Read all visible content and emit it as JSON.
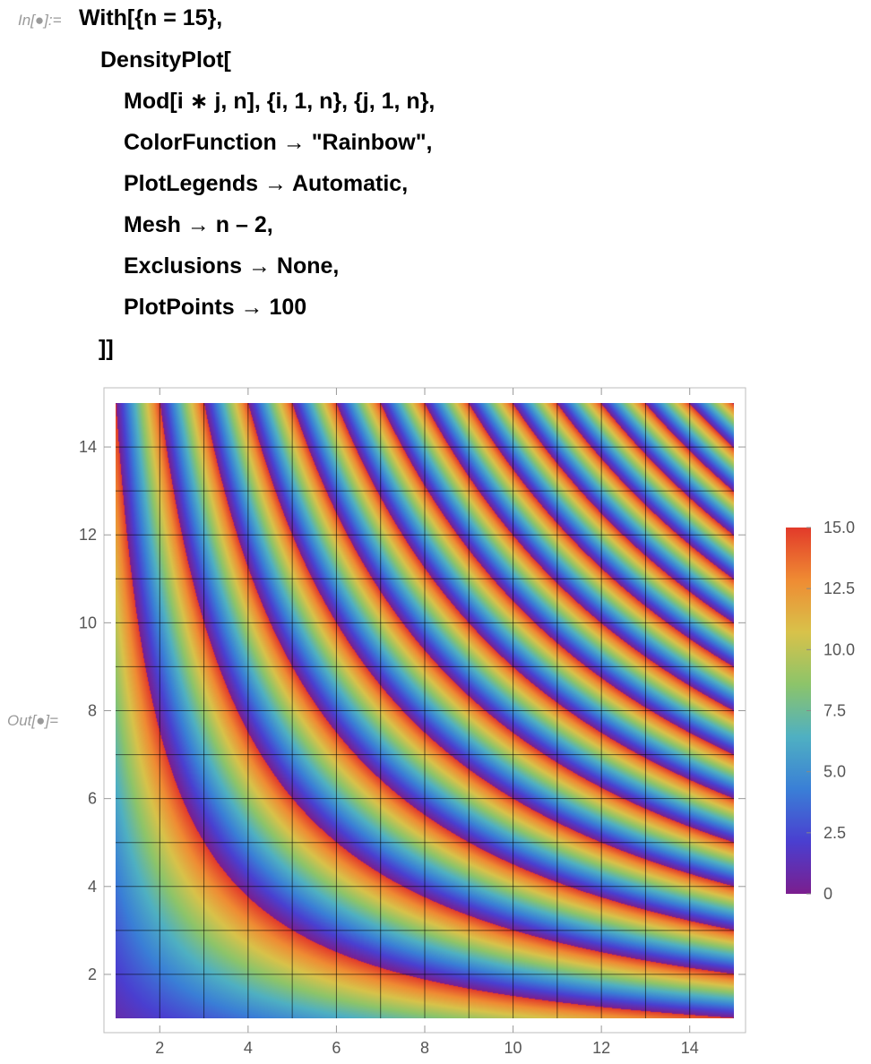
{
  "input_label": "In[●]:=",
  "output_label": "Out[●]=",
  "code_lines": [
    "With[{n = 15},",
    "DensityPlot[",
    "Mod[i ∗ j, n], {i, 1, n}, {j, 1, n},",
    "ColorFunction → \"Rainbow\",",
    "PlotLegends → Automatic,",
    "Mesh → n – 2,",
    "Exclusions → None,",
    "PlotPoints → 100",
    "]]"
  ],
  "chart_data": {
    "type": "heatmap",
    "function": "Mod[i*j, 15]",
    "n": 15,
    "color_function": "Rainbow",
    "xlim": [
      1,
      15
    ],
    "ylim": [
      1,
      15
    ],
    "x_ticks": [
      "2",
      "4",
      "6",
      "8",
      "10",
      "12",
      "14"
    ],
    "y_ticks": [
      "2",
      "4",
      "6",
      "8",
      "10",
      "12",
      "14"
    ],
    "mesh_lines": 13,
    "legend": {
      "placement": "right",
      "range": [
        0,
        15
      ],
      "labels": [
        "0",
        "2.5",
        "5.0",
        "7.5",
        "10.0",
        "12.5",
        "15.0"
      ],
      "colors": [
        "#7b1e8e",
        "#4a3fd0",
        "#3a7fd6",
        "#4fb0c2",
        "#8cc46a",
        "#d8c24a",
        "#ef8b33",
        "#e23a2a"
      ]
    }
  }
}
